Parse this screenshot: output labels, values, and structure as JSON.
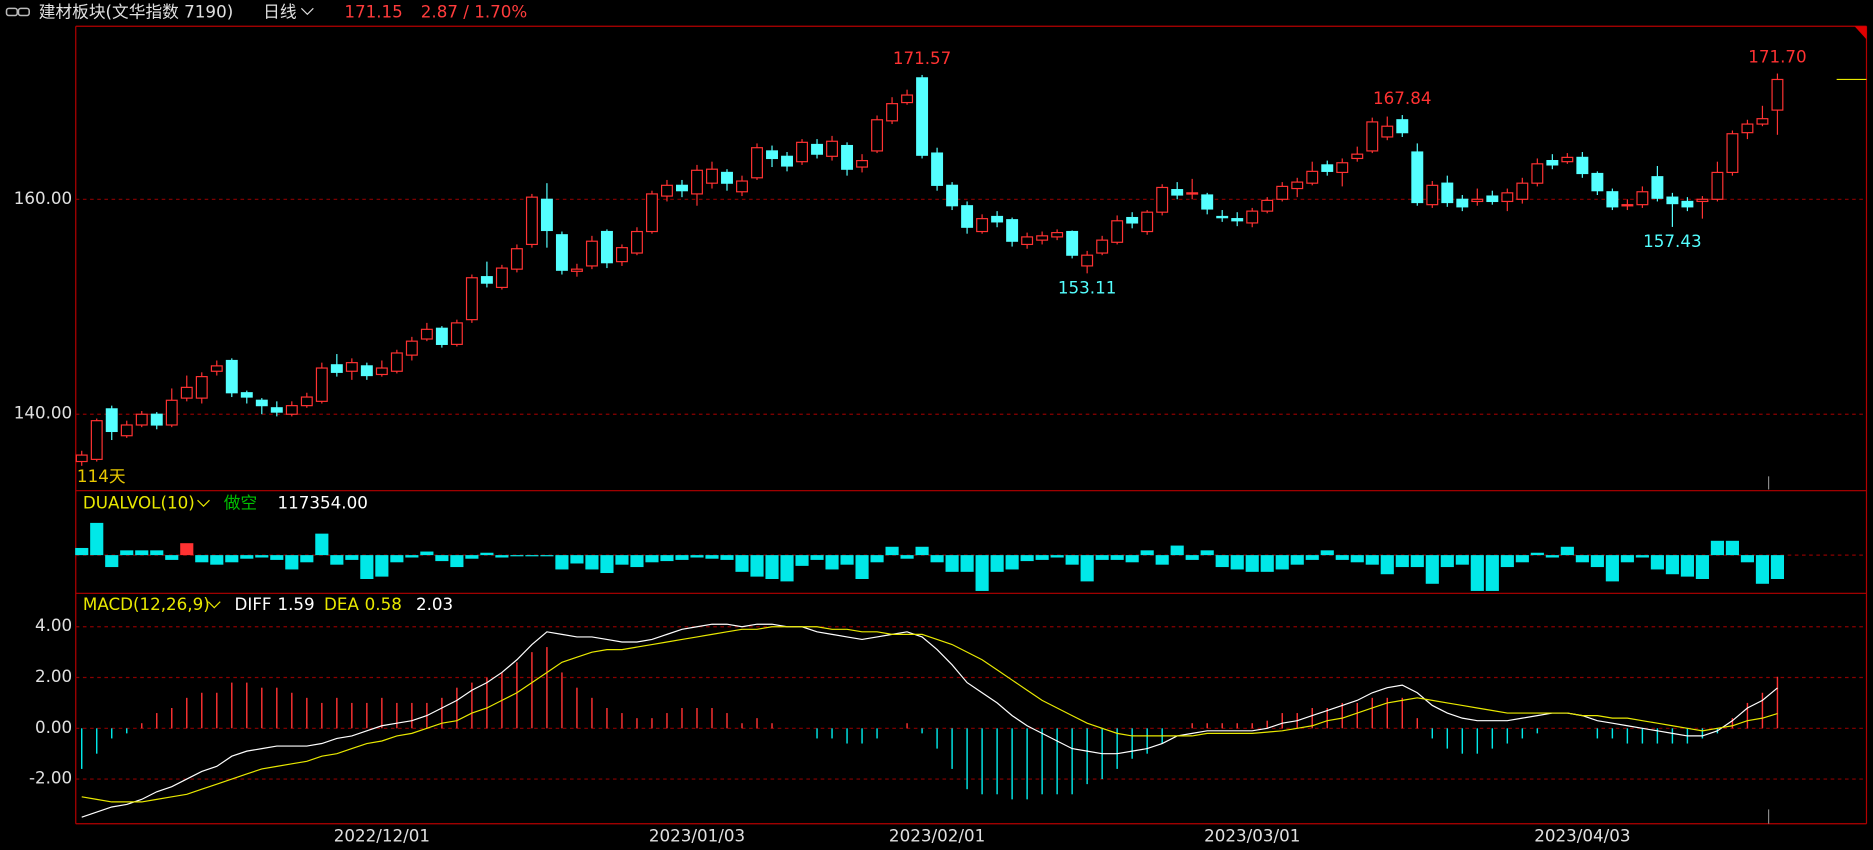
{
  "header": {
    "title": "建材板块(文华指数 7190)",
    "period": "日线",
    "change": "2.87 / 1.70%"
  },
  "chart_data": [
    {
      "type": "candlestick",
      "day_count": "114天",
      "up_color": "#ff3232",
      "down_color": "#54ffff",
      "ylim": [
        133.0,
        176.1
      ],
      "grid": true,
      "yticks": [
        {
          "value": 140,
          "label": "140.00"
        },
        {
          "value": 160,
          "label": "160.00"
        }
      ],
      "xticks": [
        {
          "value": 20,
          "label": "2022/12/01"
        },
        {
          "value": 41,
          "label": "2023/01/03"
        },
        {
          "value": 57,
          "label": "2023/02/01"
        },
        {
          "value": 78,
          "label": "2023/03/01"
        },
        {
          "value": 100,
          "label": "2023/04/03"
        }
      ],
      "annotations": [
        {
          "index": 56,
          "field": "high",
          "label": "171.57"
        },
        {
          "index": 88,
          "field": "high",
          "label": "167.84"
        },
        {
          "index": 113,
          "field": "high",
          "label": "171.70"
        },
        {
          "index": 67,
          "field": "low",
          "label": "153.11"
        },
        {
          "index": 106,
          "field": "low",
          "label": "157.43"
        }
      ],
      "open": [
        135.6,
        135.8,
        140.5,
        138.0,
        139.0,
        140.0,
        139.0,
        141.5,
        141.5,
        144.0,
        145.0,
        142.0,
        141.3,
        140.6,
        140.0,
        140.8,
        141.2,
        144.6,
        144.0,
        144.5,
        143.7,
        144.0,
        145.5,
        147.0,
        148.0,
        146.5,
        148.8,
        152.8,
        151.8,
        153.5,
        155.8,
        160.0,
        156.7,
        153.3,
        153.8,
        157.0,
        154.2,
        155.0,
        157.0,
        160.3,
        161.3,
        160.5,
        161.5,
        162.5,
        160.7,
        162.0,
        164.5,
        164.0,
        163.5,
        165.1,
        164.0,
        165.0,
        163.0,
        164.5,
        167.3,
        169.0,
        171.3,
        164.3,
        161.3,
        159.4,
        157.0,
        158.4,
        158.1,
        155.8,
        156.2,
        156.5,
        157.0,
        153.8,
        155.0,
        156.0,
        158.3,
        157.0,
        158.8,
        160.9,
        160.5,
        160.4,
        158.4,
        158.2,
        157.8,
        158.9,
        160.0,
        161.0,
        161.5,
        163.2,
        162.5,
        163.8,
        164.5,
        165.8,
        167.4,
        164.4,
        159.5,
        161.5,
        160.0,
        159.8,
        160.3,
        159.8,
        160.0,
        161.5,
        163.6,
        163.5,
        163.9,
        162.4,
        160.7,
        159.5,
        159.5,
        162.1,
        160.2,
        159.8,
        159.8,
        160.0,
        162.5,
        166.2,
        167.0,
        168.3
      ],
      "high": [
        136.6,
        139.6,
        140.8,
        139.4,
        140.3,
        140.2,
        142.4,
        143.6,
        143.9,
        145.0,
        145.2,
        142.2,
        141.5,
        141.2,
        141.2,
        142.0,
        144.8,
        145.6,
        145.2,
        144.8,
        145.0,
        146.0,
        147.2,
        148.5,
        148.2,
        148.8,
        153.0,
        154.2,
        153.9,
        155.8,
        160.5,
        161.5,
        157.0,
        154.0,
        156.6,
        157.2,
        155.8,
        157.4,
        160.8,
        161.8,
        161.8,
        163.2,
        163.5,
        162.8,
        162.2,
        165.2,
        165.0,
        164.4,
        165.6,
        165.6,
        165.9,
        165.3,
        164.2,
        167.8,
        169.5,
        170.2,
        171.57,
        164.8,
        161.6,
        159.8,
        158.6,
        158.9,
        158.3,
        156.9,
        157.0,
        157.2,
        157.1,
        155.2,
        156.6,
        158.5,
        158.8,
        159.0,
        161.4,
        161.6,
        161.9,
        160.6,
        159.0,
        158.8,
        159.2,
        160.2,
        161.6,
        162.0,
        163.5,
        163.6,
        163.8,
        164.9,
        167.6,
        167.7,
        167.84,
        165.2,
        161.7,
        162.2,
        160.4,
        161.0,
        160.8,
        161.0,
        162.0,
        163.8,
        164.2,
        164.3,
        164.4,
        162.6,
        161.0,
        160.0,
        161.2,
        163.1,
        160.6,
        160.2,
        160.3,
        163.5,
        166.4,
        167.4,
        168.7,
        171.7
      ],
      "low": [
        135.2,
        135.6,
        137.6,
        137.8,
        138.8,
        138.6,
        138.8,
        141.2,
        141.0,
        143.6,
        141.6,
        141.0,
        140.0,
        139.8,
        139.8,
        140.6,
        141.0,
        143.5,
        143.2,
        143.2,
        143.5,
        143.8,
        145.0,
        146.8,
        146.2,
        146.3,
        148.5,
        151.8,
        151.6,
        153.2,
        155.5,
        155.5,
        153.0,
        152.8,
        153.5,
        153.6,
        153.8,
        154.8,
        156.8,
        159.8,
        160.2,
        159.4,
        161.0,
        160.8,
        160.3,
        161.8,
        163.0,
        162.6,
        163.2,
        163.8,
        163.6,
        162.2,
        162.5,
        164.3,
        167.0,
        168.8,
        163.8,
        160.8,
        159.0,
        156.8,
        156.8,
        157.4,
        155.6,
        155.4,
        155.8,
        156.2,
        154.5,
        153.11,
        154.8,
        155.8,
        157.3,
        156.7,
        158.5,
        160.0,
        160.0,
        158.6,
        157.9,
        157.5,
        157.4,
        158.7,
        159.8,
        160.2,
        161.3,
        162.2,
        161.2,
        163.5,
        164.3,
        165.5,
        165.8,
        159.4,
        159.2,
        159.3,
        158.9,
        159.4,
        159.5,
        158.9,
        159.6,
        161.2,
        162.8,
        163.3,
        162.0,
        160.4,
        159.0,
        159.0,
        159.2,
        159.8,
        157.43,
        158.9,
        158.2,
        159.8,
        162.2,
        165.6,
        166.8,
        166.0
      ],
      "close": [
        136.2,
        139.4,
        138.4,
        139.0,
        140.0,
        139.0,
        141.3,
        142.5,
        143.5,
        144.5,
        142.0,
        141.6,
        140.8,
        140.2,
        140.8,
        141.6,
        144.3,
        143.9,
        144.8,
        143.6,
        144.3,
        145.7,
        146.8,
        147.9,
        146.5,
        148.5,
        152.7,
        152.2,
        153.6,
        155.4,
        160.2,
        157.1,
        153.4,
        153.5,
        156.1,
        154.1,
        155.5,
        157.0,
        160.5,
        161.3,
        160.8,
        162.7,
        162.8,
        161.5,
        161.7,
        164.8,
        163.8,
        163.1,
        165.3,
        164.2,
        165.4,
        162.8,
        163.6,
        167.4,
        168.9,
        169.7,
        164.1,
        161.3,
        159.4,
        157.4,
        158.2,
        157.9,
        156.1,
        156.5,
        156.6,
        156.9,
        154.8,
        154.8,
        156.2,
        158.0,
        157.8,
        158.8,
        161.1,
        160.4,
        160.6,
        159.1,
        158.3,
        158.0,
        158.9,
        159.9,
        161.2,
        161.6,
        162.6,
        162.6,
        163.4,
        164.2,
        167.2,
        166.8,
        166.2,
        159.7,
        161.3,
        159.7,
        159.3,
        160.0,
        159.8,
        160.6,
        161.5,
        163.3,
        163.2,
        163.9,
        162.4,
        160.8,
        159.3,
        159.5,
        160.7,
        160.1,
        159.6,
        159.3,
        160.0,
        162.5,
        166.1,
        167.0,
        167.5,
        171.15
      ],
      "last_color": "#e8e800"
    },
    {
      "type": "bar",
      "name": "DUALVOL(10)",
      "signal": "做空",
      "current": "117354.00",
      "color": "#00e8e8",
      "red_bars": [
        7
      ],
      "red_color": "#ff3232",
      "ylim": [
        -31000,
        53000
      ],
      "values": [
        6000,
        27000,
        -10000,
        4000,
        4000,
        4000,
        -4000,
        10000,
        -6000,
        -8000,
        -6000,
        -3000,
        -2000,
        -4000,
        -12000,
        -6000,
        18000,
        -8000,
        -4000,
        -20000,
        -18000,
        -6000,
        -2000,
        3000,
        -5000,
        -10000,
        -3000,
        2000,
        -2000,
        -1000,
        -1000,
        -1000,
        -12000,
        -7000,
        -12000,
        -15000,
        -8000,
        -10000,
        -6000,
        -5000,
        -4000,
        -2000,
        -3000,
        -4000,
        -14000,
        -18000,
        -20000,
        -22000,
        -9000,
        -4000,
        -12000,
        -8000,
        -20000,
        -6000,
        7000,
        -3000,
        7000,
        -6000,
        -14000,
        -14000,
        -30000,
        -14000,
        -12000,
        -5000,
        -4000,
        -2000,
        -8000,
        -22000,
        -4000,
        -4000,
        -6000,
        4000,
        -8000,
        8000,
        -4000,
        4000,
        -10000,
        -12000,
        -14000,
        -14000,
        -12000,
        -8000,
        -4000,
        4000,
        -4000,
        -6000,
        -8000,
        -16000,
        -10000,
        -10000,
        -24000,
        -10000,
        -8000,
        -30000,
        -30000,
        -10000,
        -6000,
        2000,
        -2000,
        7000,
        -6000,
        -10000,
        -22000,
        -6000,
        -2000,
        -12000,
        -16000,
        -18000,
        -20000,
        12000,
        12000,
        -6000,
        -24000,
        -20000
      ]
    },
    {
      "type": "macd",
      "name": "MACD(12,26,9)",
      "ylim": [
        -3.76,
        5.27
      ],
      "grid": true,
      "yticks": [
        {
          "value": -2,
          "label": "-2.00"
        },
        {
          "value": 0,
          "label": "0.00"
        },
        {
          "value": 2,
          "label": "2.00"
        },
        {
          "value": 4,
          "label": "4.00"
        }
      ],
      "series": [
        {
          "name": "DIFF",
          "color": "#ffffff",
          "values": [
            -3.5,
            -3.3,
            -3.1,
            -3.0,
            -2.8,
            -2.5,
            -2.3,
            -2.0,
            -1.7,
            -1.5,
            -1.1,
            -0.9,
            -0.8,
            -0.7,
            -0.7,
            -0.7,
            -0.6,
            -0.4,
            -0.3,
            -0.1,
            0.1,
            0.2,
            0.3,
            0.5,
            0.8,
            1.1,
            1.5,
            1.8,
            2.2,
            2.7,
            3.3,
            3.8,
            3.7,
            3.6,
            3.6,
            3.5,
            3.4,
            3.4,
            3.5,
            3.7,
            3.9,
            4.0,
            4.1,
            4.1,
            4.0,
            4.1,
            4.1,
            4.0,
            4.0,
            3.8,
            3.7,
            3.6,
            3.5,
            3.6,
            3.7,
            3.8,
            3.6,
            3.1,
            2.5,
            1.8,
            1.4,
            1.0,
            0.5,
            0.1,
            -0.2,
            -0.5,
            -0.8,
            -0.9,
            -1.0,
            -1.0,
            -0.9,
            -0.8,
            -0.6,
            -0.3,
            -0.2,
            -0.1,
            -0.1,
            -0.1,
            -0.1,
            0.0,
            0.2,
            0.3,
            0.5,
            0.7,
            0.9,
            1.1,
            1.4,
            1.6,
            1.7,
            1.4,
            0.9,
            0.6,
            0.4,
            0.3,
            0.3,
            0.3,
            0.4,
            0.5,
            0.6,
            0.6,
            0.5,
            0.3,
            0.2,
            0.1,
            0.0,
            -0.1,
            -0.2,
            -0.3,
            -0.3,
            -0.1,
            0.3,
            0.8,
            1.1,
            1.59
          ]
        },
        {
          "name": "DEA",
          "color": "#e8e800",
          "values": [
            -2.7,
            -2.8,
            -2.9,
            -2.9,
            -2.9,
            -2.8,
            -2.7,
            -2.6,
            -2.4,
            -2.2,
            -2.0,
            -1.8,
            -1.6,
            -1.5,
            -1.4,
            -1.3,
            -1.1,
            -1.0,
            -0.8,
            -0.6,
            -0.5,
            -0.3,
            -0.2,
            0.0,
            0.2,
            0.3,
            0.6,
            0.8,
            1.1,
            1.4,
            1.8,
            2.2,
            2.6,
            2.8,
            3.0,
            3.1,
            3.1,
            3.2,
            3.3,
            3.4,
            3.5,
            3.6,
            3.7,
            3.8,
            3.9,
            3.9,
            4.0,
            4.0,
            4.0,
            4.0,
            3.9,
            3.9,
            3.8,
            3.8,
            3.7,
            3.7,
            3.7,
            3.5,
            3.3,
            3.0,
            2.7,
            2.3,
            1.9,
            1.5,
            1.1,
            0.8,
            0.5,
            0.2,
            0.0,
            -0.2,
            -0.3,
            -0.3,
            -0.3,
            -0.3,
            -0.3,
            -0.2,
            -0.2,
            -0.2,
            -0.2,
            -0.15,
            -0.1,
            0.0,
            0.1,
            0.3,
            0.4,
            0.6,
            0.8,
            1.0,
            1.1,
            1.2,
            1.1,
            1.0,
            0.9,
            0.8,
            0.7,
            0.6,
            0.6,
            0.6,
            0.6,
            0.6,
            0.5,
            0.5,
            0.4,
            0.4,
            0.3,
            0.2,
            0.1,
            0.0,
            -0.1,
            0.0,
            0.1,
            0.3,
            0.4,
            0.58
          ]
        }
      ],
      "histogram": {
        "up_color": "#ff3232",
        "down_color": "#00e8e8",
        "values": [
          -1.6,
          -1.0,
          -0.4,
          -0.2,
          0.2,
          0.6,
          0.8,
          1.2,
          1.4,
          1.4,
          1.8,
          1.8,
          1.6,
          1.6,
          1.4,
          1.2,
          1.0,
          1.2,
          1.0,
          1.0,
          1.2,
          1.0,
          1.0,
          1.0,
          1.2,
          1.6,
          1.8,
          2.0,
          2.2,
          2.6,
          3.0,
          3.2,
          2.2,
          1.6,
          1.2,
          0.8,
          0.6,
          0.4,
          0.4,
          0.6,
          0.8,
          0.8,
          0.8,
          0.6,
          0.2,
          0.4,
          0.2,
          0,
          0,
          -0.4,
          -0.4,
          -0.6,
          -0.6,
          -0.4,
          0,
          0.2,
          -0.2,
          -0.8,
          -1.6,
          -2.4,
          -2.6,
          -2.6,
          -2.8,
          -2.8,
          -2.6,
          -2.6,
          -2.6,
          -2.2,
          -2.0,
          -1.6,
          -1.2,
          -1.0,
          -0.6,
          0,
          0.2,
          0.2,
          0.2,
          0.2,
          0.2,
          0.3,
          0.6,
          0.6,
          0.8,
          0.8,
          1.0,
          1.0,
          1.2,
          1.2,
          1.2,
          0.4,
          -0.4,
          -0.8,
          -1.0,
          -1.0,
          -0.8,
          -0.6,
          -0.4,
          -0.2,
          0,
          0,
          0,
          -0.4,
          -0.4,
          -0.6,
          -0.6,
          -0.6,
          -0.6,
          -0.6,
          -0.4,
          -0.2,
          0.4,
          1.0,
          1.4,
          2.03
        ]
      }
    }
  ]
}
